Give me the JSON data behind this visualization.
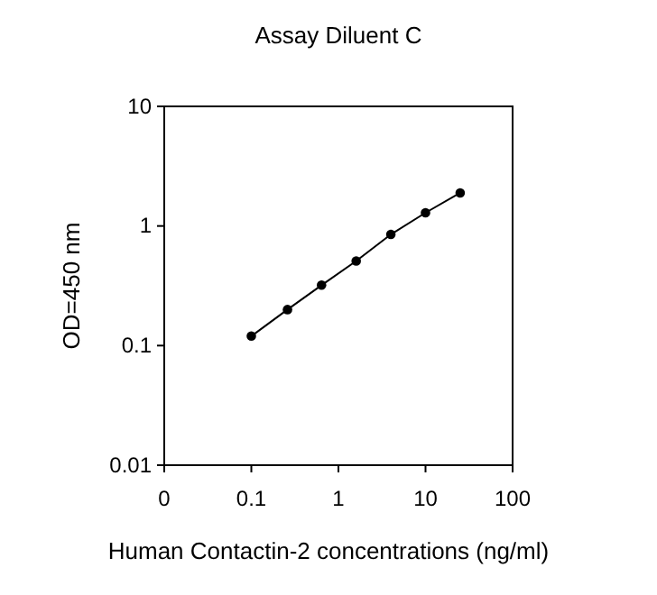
{
  "chart_data": {
    "type": "line",
    "title": "Assay Diluent C",
    "xlabel": "Human Contactin-2 concentrations (ng/ml)",
    "ylabel": "OD=450 nm",
    "log": "xy",
    "marker": "circle",
    "grid": false,
    "x": [
      0.1,
      0.26,
      0.64,
      1.6,
      4,
      10,
      25
    ],
    "series": [
      {
        "color": "#000000",
        "values": [
          0.12,
          0.2,
          0.32,
          0.51,
          0.85,
          1.29,
          1.89
        ]
      }
    ],
    "xlim": [
      0.01,
      100
    ],
    "xticks": [
      {
        "value": 0.01,
        "label": "0"
      },
      0.1,
      1,
      10,
      100
    ],
    "ylim": [
      0.01,
      10
    ],
    "yticks": [
      0.01,
      0.1,
      1,
      10
    ]
  }
}
